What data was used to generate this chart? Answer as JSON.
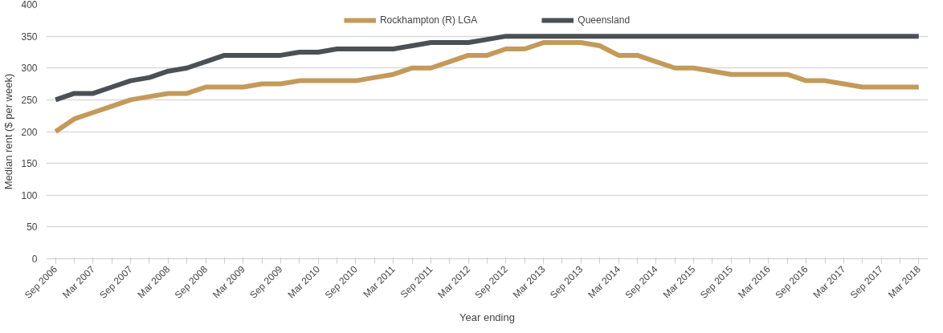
{
  "chart_data": {
    "type": "line",
    "xlabel": "Year ending",
    "ylabel": "Median rent ($ per week)",
    "categories": [
      "Sep 2006",
      null,
      "Mar 2007",
      null,
      "Sep 2007",
      null,
      "Mar 2008",
      null,
      "Sep 2008",
      null,
      "Mar 2009",
      null,
      "Sep 2009",
      null,
      "Mar 2010",
      null,
      "Sep 2010",
      null,
      "Mar 2011",
      null,
      "Sep 2011",
      null,
      "Mar 2012",
      null,
      "Sep 2012",
      null,
      "Mar 2013",
      null,
      "Sep 2013",
      null,
      "Mar 2014",
      null,
      "Sep 2014",
      null,
      "Mar 2015",
      null,
      "Sep 2015",
      null,
      "Mar 2016",
      null,
      "Sep 2016",
      null,
      "Mar 2017",
      null,
      "Sep 2017",
      null,
      "Mar 2018"
    ],
    "series": [
      {
        "name": "Rockhampton (R) LGA",
        "color": "#c39a5a",
        "values": [
          200,
          220,
          230,
          240,
          250,
          255,
          260,
          260,
          270,
          270,
          270,
          275,
          275,
          280,
          280,
          280,
          280,
          285,
          290,
          300,
          300,
          310,
          320,
          320,
          330,
          330,
          340,
          340,
          340,
          335,
          320,
          320,
          310,
          300,
          300,
          295,
          290,
          290,
          290,
          290,
          280,
          280,
          275,
          270,
          270,
          270,
          270
        ]
      },
      {
        "name": "Queensland",
        "color": "#4b5056",
        "values": [
          250,
          260,
          260,
          270,
          280,
          285,
          295,
          300,
          310,
          320,
          320,
          320,
          320,
          325,
          325,
          330,
          330,
          330,
          330,
          335,
          340,
          340,
          340,
          345,
          350,
          350,
          350,
          350,
          350,
          350,
          350,
          350,
          350,
          350,
          350,
          350,
          350,
          350,
          350,
          350,
          350,
          350,
          350,
          350,
          350,
          350,
          350
        ]
      }
    ],
    "ylim": [
      0,
      400
    ],
    "yticks": [
      0,
      50,
      100,
      150,
      200,
      250,
      300,
      350,
      400
    ],
    "grid": "y",
    "legend": "top",
    "line_style": "solid",
    "marker": "none"
  }
}
